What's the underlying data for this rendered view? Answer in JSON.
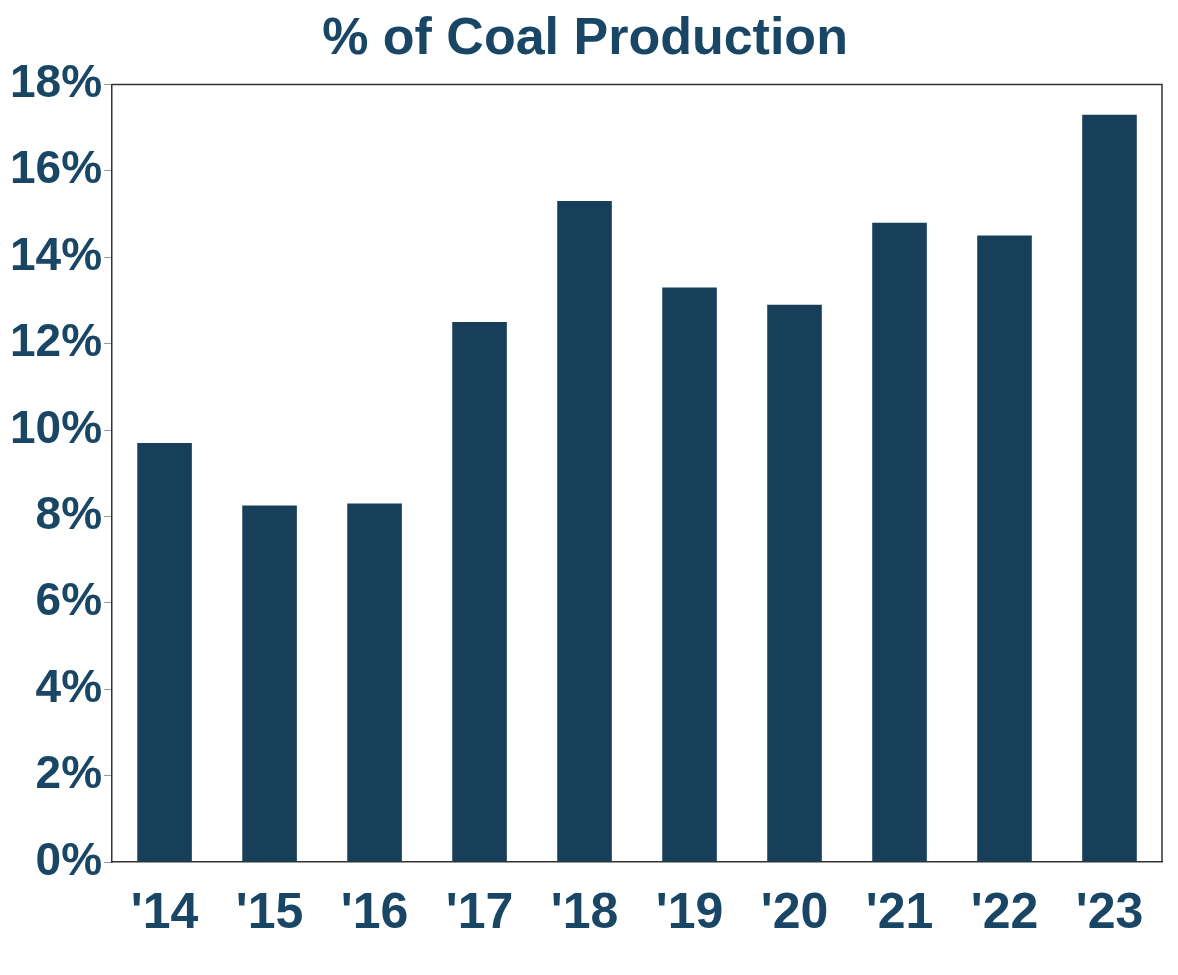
{
  "chart_data": {
    "type": "bar",
    "title": "% of Coal Production",
    "categories": [
      "'14",
      "'15",
      "'16",
      "'17",
      "'18",
      "'19",
      "'20",
      "'21",
      "'22",
      "'23"
    ],
    "values": [
      9.7,
      8.25,
      8.3,
      12.5,
      15.3,
      13.3,
      12.9,
      14.8,
      14.5,
      17.3
    ],
    "color": "#173f5a",
    "ylim": [
      0,
      18
    ],
    "yticks": [
      {
        "value": 0,
        "label": "0%"
      },
      {
        "value": 2,
        "label": "2%"
      },
      {
        "value": 4,
        "label": "4%"
      },
      {
        "value": 6,
        "label": "6%"
      },
      {
        "value": 8,
        "label": "8%"
      },
      {
        "value": 10,
        "label": "10%"
      },
      {
        "value": 12,
        "label": "12%"
      },
      {
        "value": 14,
        "label": "14%"
      },
      {
        "value": 16,
        "label": "16%"
      },
      {
        "value": 18,
        "label": "18%"
      }
    ],
    "grid": false,
    "legend": false
  }
}
